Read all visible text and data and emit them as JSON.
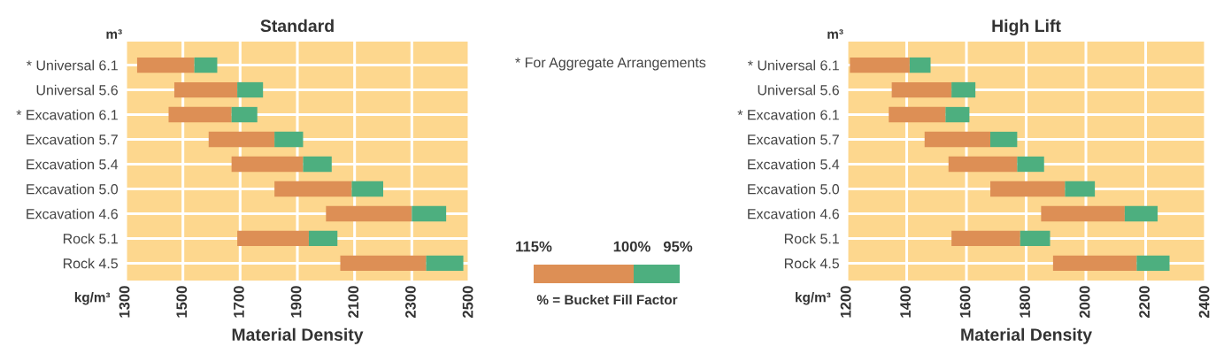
{
  "chart_data": [
    {
      "type": "bar",
      "orientation": "horizontal",
      "title": "Standard",
      "xlabel": "Material Density",
      "ylabel": "m³",
      "annotations": [
        "kg/m³"
      ],
      "categories": [
        "* Universal 6.1",
        "Universal 5.6",
        "* Excavation 6.1",
        "Excavation 5.7",
        "Excavation 5.4",
        "Excavation 5.0",
        "Excavation 4.6",
        "Rock 5.1",
        "Rock 4.5"
      ],
      "series": [
        {
          "color": "#dd8f55",
          "base": [
            1340,
            1470,
            1450,
            1590,
            1670,
            1820,
            2000,
            1690,
            2050
          ],
          "values": [
            200,
            220,
            220,
            230,
            250,
            270,
            300,
            250,
            300
          ]
        },
        {
          "color": "#4daf7f",
          "base": [
            1540,
            1690,
            1670,
            1820,
            1920,
            2090,
            2300,
            1940,
            2350
          ],
          "values": [
            80,
            90,
            90,
            100,
            100,
            110,
            120,
            100,
            130
          ]
        }
      ],
      "xlim": [
        1300,
        2500
      ],
      "xticks": [
        1300,
        1500,
        1700,
        1900,
        2100,
        2300,
        2500
      ],
      "grid": true
    },
    {
      "type": "other",
      "annotations": [
        "* For Aggregate Arrangements",
        "115%",
        "100%",
        "95%",
        "% = Bucket Fill Factor"
      ],
      "colors": [
        "#dd8f55",
        "#4daf7f"
      ]
    },
    {
      "type": "bar",
      "orientation": "horizontal",
      "title": "High Lift",
      "xlabel": "Material Density",
      "ylabel": "m³",
      "annotations": [
        "kg/m³"
      ],
      "categories": [
        "* Universal 6.1",
        "Universal 5.6",
        "* Excavation 6.1",
        "Excavation 5.7",
        "Excavation 5.4",
        "Excavation 5.0",
        "Excavation 4.6",
        "Rock 5.1",
        "Rock 4.5"
      ],
      "series": [
        {
          "color": "#dd8f55",
          "base": [
            1210,
            1350,
            1340,
            1460,
            1540,
            1680,
            1850,
            1550,
            1890
          ],
          "values": [
            200,
            200,
            190,
            220,
            230,
            250,
            280,
            230,
            280
          ]
        },
        {
          "color": "#4daf7f",
          "base": [
            1410,
            1550,
            1530,
            1680,
            1770,
            1930,
            2130,
            1780,
            2170
          ],
          "values": [
            70,
            80,
            80,
            90,
            90,
            100,
            110,
            100,
            110
          ]
        }
      ],
      "xlim": [
        1200,
        2400
      ],
      "xticks": [
        1200,
        1400,
        1600,
        1800,
        2000,
        2200,
        2400
      ],
      "grid": true
    }
  ]
}
